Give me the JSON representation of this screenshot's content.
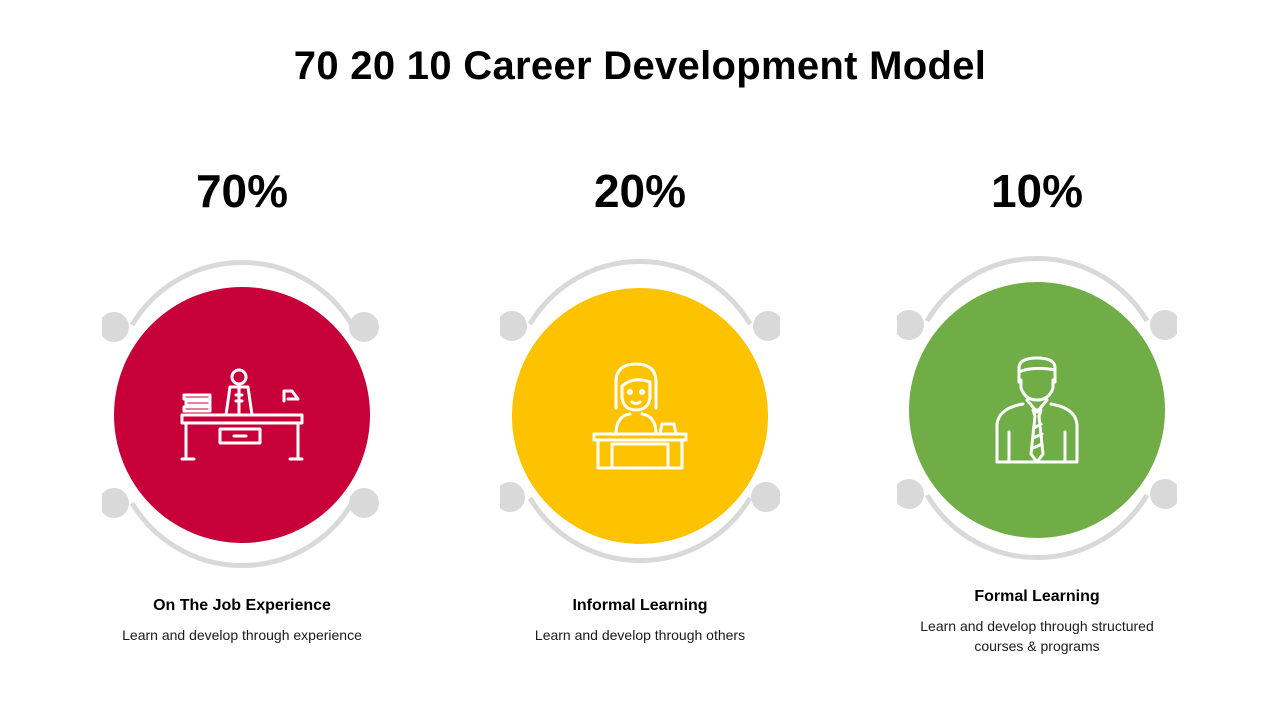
{
  "title": "70 20 10 Career Development Model",
  "items": [
    {
      "percent": "70%",
      "label": "On The Job Experience",
      "description": "Learn and develop through  experience",
      "color": "#c8003a",
      "icon": "worker-at-desk-icon"
    },
    {
      "percent": "20%",
      "label": "Informal Learning",
      "description": "Learn and develop through  others",
      "color": "#fdc300",
      "icon": "woman-at-desk-icon"
    },
    {
      "percent": "10%",
      "label": "Formal Learning",
      "description": "Learn and develop through  structured courses & programs",
      "color": "#71ad47",
      "icon": "businessman-icon"
    }
  ]
}
